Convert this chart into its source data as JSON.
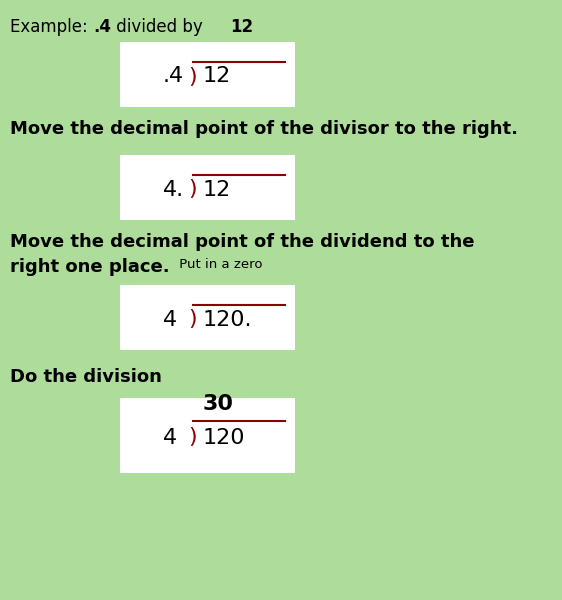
{
  "bg_color": "#aedd9b",
  "white_box_color": "#ffffff",
  "text_color": "#000000",
  "dark_red": "#8b0000",
  "instruction1": "Move the decimal point of the divisor to the right.",
  "instruction2_bold": "Move the decimal point of the dividend to the",
  "instruction2_line2_bold": "right one place.",
  "instruction2_line2_small": " Put in a zero",
  "instruction3": "Do the division",
  "figsize": [
    5.62,
    6.0
  ],
  "dpi": 100
}
